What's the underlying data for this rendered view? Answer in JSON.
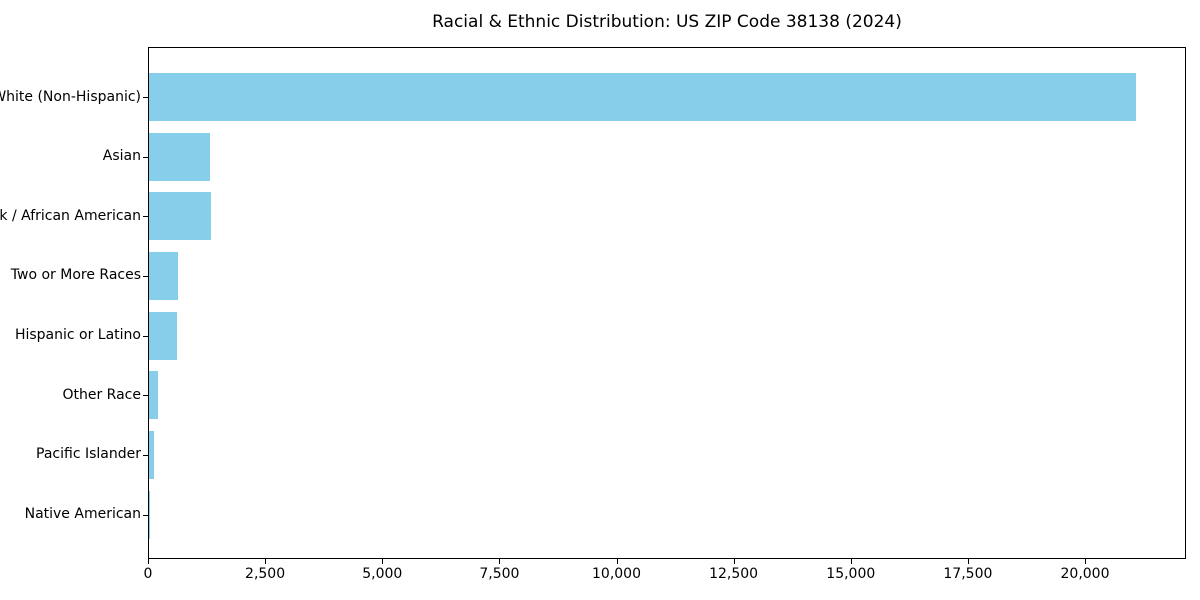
{
  "chart_data": {
    "type": "bar",
    "orientation": "horizontal",
    "title": "Racial & Ethnic Distribution: US ZIP Code 38138 (2024)",
    "categories": [
      "White (Non-Hispanic)",
      "Asian",
      "Black / African American",
      "Two or More Races",
      "Hispanic or Latino",
      "Other Race",
      "Pacific Islander",
      "Native American"
    ],
    "values": [
      21100,
      1310,
      1330,
      620,
      600,
      185,
      100,
      15
    ],
    "xlabel": "",
    "ylabel": "",
    "xlim": [
      0,
      22155
    ],
    "xticks": [
      0,
      2500,
      5000,
      7500,
      10000,
      12500,
      15000,
      17500,
      20000
    ],
    "xtick_labels": [
      "0",
      "2,500",
      "5,000",
      "7,500",
      "10,000",
      "12,500",
      "15,000",
      "17,500",
      "20,000"
    ],
    "bar_color": "#87CEEB",
    "axis_color": "#000000",
    "grid": false,
    "legend": null
  }
}
